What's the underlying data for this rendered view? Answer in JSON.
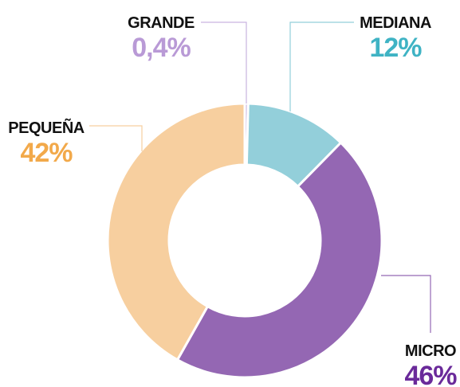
{
  "chart_data": {
    "type": "donut",
    "categories": [
      "GRANDE",
      "MEDIANA",
      "MICRO",
      "PEQUEÑA"
    ],
    "values": [
      0.4,
      12,
      46,
      42
    ],
    "value_labels": [
      "0,4%",
      "12%",
      "46%",
      "42%"
    ],
    "colors": [
      "#c9b3e0",
      "#93cfda",
      "#9467b3",
      "#f7cf9f"
    ],
    "label_colors": [
      "#b99ad6",
      "#3fb3c4",
      "#6a2a9a",
      "#f2a94a"
    ]
  }
}
